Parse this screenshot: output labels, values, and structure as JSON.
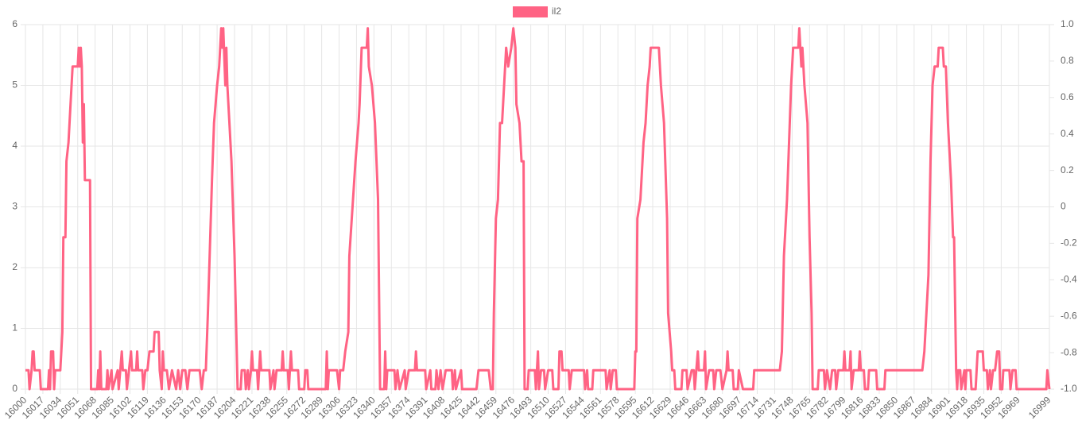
{
  "chart_data": {
    "type": "line",
    "series": [
      {
        "name": "il2",
        "color": "#ff6384",
        "x": [
          16000,
          16003,
          16004,
          16006,
          16007,
          16008,
          16009,
          16014,
          16015,
          16022,
          16023,
          16024,
          16025,
          16027,
          16028,
          16029,
          16034,
          16035,
          16036,
          16037,
          16039,
          16040,
          16042,
          16044,
          16046,
          16051,
          16052,
          16053,
          16054,
          16055,
          16056,
          16057,
          16058,
          16063,
          16064,
          16070,
          16071,
          16072,
          16073,
          16074,
          16079,
          16080,
          16081,
          16084,
          16085,
          16090,
          16091,
          16094,
          16095,
          16098,
          16099,
          16103,
          16104,
          16108,
          16109,
          16110,
          16114,
          16115,
          16117,
          16119,
          16121,
          16125,
          16126,
          16130,
          16131,
          16133,
          16134,
          16135,
          16138,
          16140,
          16143,
          16147,
          16149,
          16151,
          16153,
          16156,
          16158,
          16160,
          16170,
          16172,
          16174,
          16176,
          16178,
          16182,
          16184,
          16187,
          16189,
          16191,
          16192,
          16193,
          16195,
          16196,
          16197,
          16199,
          16201,
          16204,
          16207,
          16210,
          16211,
          16214,
          16215,
          16217,
          16218,
          16220,
          16221,
          16222,
          16226,
          16227,
          16229,
          16230,
          16238,
          16239,
          16242,
          16243,
          16245,
          16250,
          16251,
          16252,
          16256,
          16257,
          16259,
          16260,
          16266,
          16267,
          16272,
          16273,
          16275,
          16276,
          16293,
          16294,
          16295,
          16296,
          16304,
          16306,
          16307,
          16310,
          16312,
          16315,
          16316,
          16322,
          16325,
          16326,
          16328,
          16333,
          16334,
          16335,
          16338,
          16341,
          16344,
          16346,
          16350,
          16351,
          16352,
          16353,
          16360,
          16361,
          16363,
          16365,
          16370,
          16371,
          16374,
          16380,
          16381,
          16382,
          16390,
          16391,
          16395,
          16396,
          16400,
          16401,
          16403,
          16405,
          16407,
          16410,
          16416,
          16417,
          16419,
          16420,
          16425,
          16426,
          16440,
          16442,
          16452,
          16454,
          16456,
          16457,
          16459,
          16461,
          16463,
          16465,
          16467,
          16469,
          16471,
          16474,
          16476,
          16478,
          16479,
          16482,
          16484,
          16486,
          16487,
          16490,
          16491,
          16497,
          16498,
          16500,
          16501,
          16503,
          16506,
          16507,
          16510,
          16514,
          16515,
          16520,
          16521,
          16523,
          16524,
          16530,
          16531,
          16533,
          16545,
          16546,
          16548,
          16549,
          16553,
          16554,
          16566,
          16567,
          16570,
          16571,
          16573,
          16576,
          16577,
          16594,
          16595,
          16596,
          16597,
          16600,
          16603,
          16605,
          16607,
          16609,
          16610,
          16618,
          16620,
          16623,
          16626,
          16627,
          16630,
          16631,
          16633,
          16634,
          16640,
          16641,
          16645,
          16646,
          16650,
          16652,
          16653,
          16656,
          16657,
          16662,
          16663,
          16664,
          16667,
          16671,
          16672,
          16674,
          16678,
          16680,
          16684,
          16685,
          16686,
          16690,
          16691,
          16695,
          16696,
          16700,
          16710,
          16711,
          16730,
          16736,
          16738,
          16740,
          16742,
          16743,
          16745,
          16747,
          16748,
          16749,
          16754,
          16755,
          16756,
          16757,
          16758,
          16760,
          16763,
          16765,
          16767,
          16768,
          16773,
          16774,
          16779,
          16780,
          16782,
          16785,
          16787,
          16790,
          16791,
          16793,
          16798,
          16799,
          16800,
          16804,
          16805,
          16806,
          16808,
          16813,
          16814,
          16815,
          16818,
          16819,
          16822,
          16823,
          16830,
          16831,
          16838,
          16839,
          16845,
          16849,
          16868,
          16875,
          16877,
          16879,
          16881,
          16883,
          16885,
          16887,
          16890,
          16891,
          16895,
          16896,
          16898,
          16900,
          16903,
          16905,
          16906,
          16908,
          16909,
          16910,
          16912,
          16913,
          16916,
          16917,
          16918,
          16922,
          16923,
          16927,
          16929,
          16934,
          16935,
          16938,
          16939,
          16941,
          16942,
          16944,
          16946,
          16948,
          16950,
          16951,
          16953,
          16954,
          16960,
          16961,
          16963,
          16966,
          16967,
          16996,
          16997,
          16999
        ],
        "values": [
          0.31,
          0.31,
          0,
          0.31,
          0.62,
          0.62,
          0.31,
          0.31,
          0,
          0,
          0.31,
          0,
          0.62,
          0.62,
          0,
          0.31,
          0.31,
          0.62,
          0.94,
          2.5,
          2.5,
          3.75,
          4.06,
          4.69,
          5.31,
          5.31,
          5.62,
          5.31,
          5.62,
          5.31,
          4.06,
          4.69,
          3.44,
          3.44,
          0,
          0,
          0.31,
          0,
          0.62,
          0,
          0,
          0.31,
          0,
          0.31,
          0,
          0.31,
          0,
          0.62,
          0.31,
          0.31,
          0,
          0.62,
          0.31,
          0.31,
          0.62,
          0.31,
          0.31,
          0,
          0.31,
          0.31,
          0.62,
          0.62,
          0.94,
          0.94,
          0.31,
          0,
          0.62,
          0.31,
          0.31,
          0,
          0.31,
          0,
          0.31,
          0,
          0.31,
          0.31,
          0,
          0.31,
          0.31,
          0,
          0.31,
          0.31,
          1.25,
          3.44,
          4.38,
          5,
          5.31,
          5.94,
          5.62,
          5.94,
          5,
          5.62,
          5,
          4.38,
          3.75,
          2.19,
          0,
          0,
          0.31,
          0.31,
          0,
          0.31,
          0,
          0.31,
          0.62,
          0.31,
          0.31,
          0,
          0.62,
          0.31,
          0.31,
          0,
          0.31,
          0,
          0.31,
          0.31,
          0.62,
          0.31,
          0.31,
          0,
          0.62,
          0.31,
          0.31,
          0,
          0,
          0.31,
          0.31,
          0,
          0,
          0.62,
          0,
          0.31,
          0.31,
          0,
          0.31,
          0.31,
          0.62,
          0.94,
          2.19,
          3.75,
          4.38,
          4.69,
          5.62,
          5.62,
          5.94,
          5.31,
          5,
          4.38,
          3.12,
          0,
          0,
          0.62,
          0,
          0.31,
          0.31,
          0,
          0.31,
          0,
          0.31,
          0,
          0.31,
          0.31,
          0.62,
          0.31,
          0.31,
          0,
          0.31,
          0,
          0,
          0.31,
          0,
          0.31,
          0,
          0.31,
          0.31,
          0,
          0.31,
          0,
          0.31,
          0,
          0,
          0.31,
          0.31,
          0,
          0,
          1.25,
          2.81,
          3.12,
          4.38,
          4.38,
          5,
          5.62,
          5.31,
          5.62,
          5.94,
          5.62,
          4.69,
          4.38,
          3.75,
          3.75,
          0,
          0,
          0.31,
          0.31,
          0,
          0.62,
          0,
          0.31,
          0.31,
          0,
          0.31,
          0.31,
          0,
          0,
          0.62,
          0.62,
          0.31,
          0.31,
          0,
          0.31,
          0.31,
          0,
          0.31,
          0,
          0,
          0.31,
          0.31,
          0,
          0.31,
          0,
          0.31,
          0.31,
          0,
          0,
          0.62,
          0.62,
          2.81,
          3.12,
          4.06,
          4.38,
          5,
          5.31,
          5.62,
          5.62,
          5,
          4.38,
          2.81,
          1.25,
          0.62,
          0.31,
          0.31,
          0,
          0,
          0.31,
          0.31,
          0,
          0.31,
          0.31,
          0,
          0.62,
          0.31,
          0.31,
          0.62,
          0,
          0.31,
          0.31,
          0,
          0.31,
          0.31,
          0,
          0.31,
          0.62,
          0.31,
          0.31,
          0,
          0,
          0.31,
          0,
          0,
          0.31,
          0.31,
          0.31,
          0.62,
          2.19,
          2.81,
          3.12,
          4.06,
          5,
          5.31,
          5.62,
          5.62,
          5.94,
          5.62,
          5.31,
          5.62,
          5,
          4.38,
          2.5,
          1.25,
          0,
          0,
          0.31,
          0.31,
          0,
          0.31,
          0,
          0.31,
          0.31,
          0,
          0.31,
          0.31,
          0.62,
          0.31,
          0.31,
          0.62,
          0,
          0.31,
          0.31,
          0.62,
          0.31,
          0.31,
          0,
          0,
          0.31,
          0.31,
          0,
          0,
          0.31,
          0.31,
          0.31,
          0.31,
          0.31,
          0.62,
          1.25,
          1.88,
          3.75,
          5,
          5.31,
          5.31,
          5.62,
          5.62,
          5.31,
          5.31,
          4.38,
          3.44,
          2.5,
          2.5,
          0.31,
          0,
          0.31,
          0.31,
          0,
          0.31,
          0,
          0.31,
          0.31,
          0,
          0,
          0.62,
          0.62,
          0.31,
          0.31,
          0,
          0.31,
          0,
          0.31,
          0.31,
          0.62,
          0.62,
          0,
          0,
          0.31,
          0.31,
          0,
          0.31,
          0.31,
          0,
          0,
          0.31,
          0
        ]
      }
    ],
    "xlim": [
      16000,
      16999
    ],
    "xticks": [
      16000,
      16017,
      16034,
      16051,
      16068,
      16085,
      16102,
      16119,
      16136,
      16153,
      16170,
      16187,
      16204,
      16221,
      16238,
      16255,
      16272,
      16289,
      16306,
      16323,
      16340,
      16357,
      16374,
      16391,
      16408,
      16425,
      16442,
      16459,
      16476,
      16493,
      16510,
      16527,
      16544,
      16561,
      16578,
      16595,
      16612,
      16629,
      16646,
      16663,
      16680,
      16697,
      16714,
      16731,
      16748,
      16765,
      16782,
      16799,
      16816,
      16833,
      16850,
      16867,
      16884,
      16901,
      16918,
      16935,
      16952,
      16969,
      16999
    ],
    "ylim": [
      0,
      6
    ],
    "yticks": [
      0,
      1,
      2,
      3,
      4,
      5,
      6
    ],
    "y2lim": [
      -1,
      1
    ],
    "y2ticks": [
      {
        "value": -1,
        "label": "-1.0"
      },
      -0.8,
      -0.6,
      -0.4,
      -0.2,
      0,
      0.2,
      0.4,
      0.6,
      0.8,
      {
        "value": 1,
        "label": "1.0"
      }
    ],
    "grid": true,
    "legend": "top"
  }
}
